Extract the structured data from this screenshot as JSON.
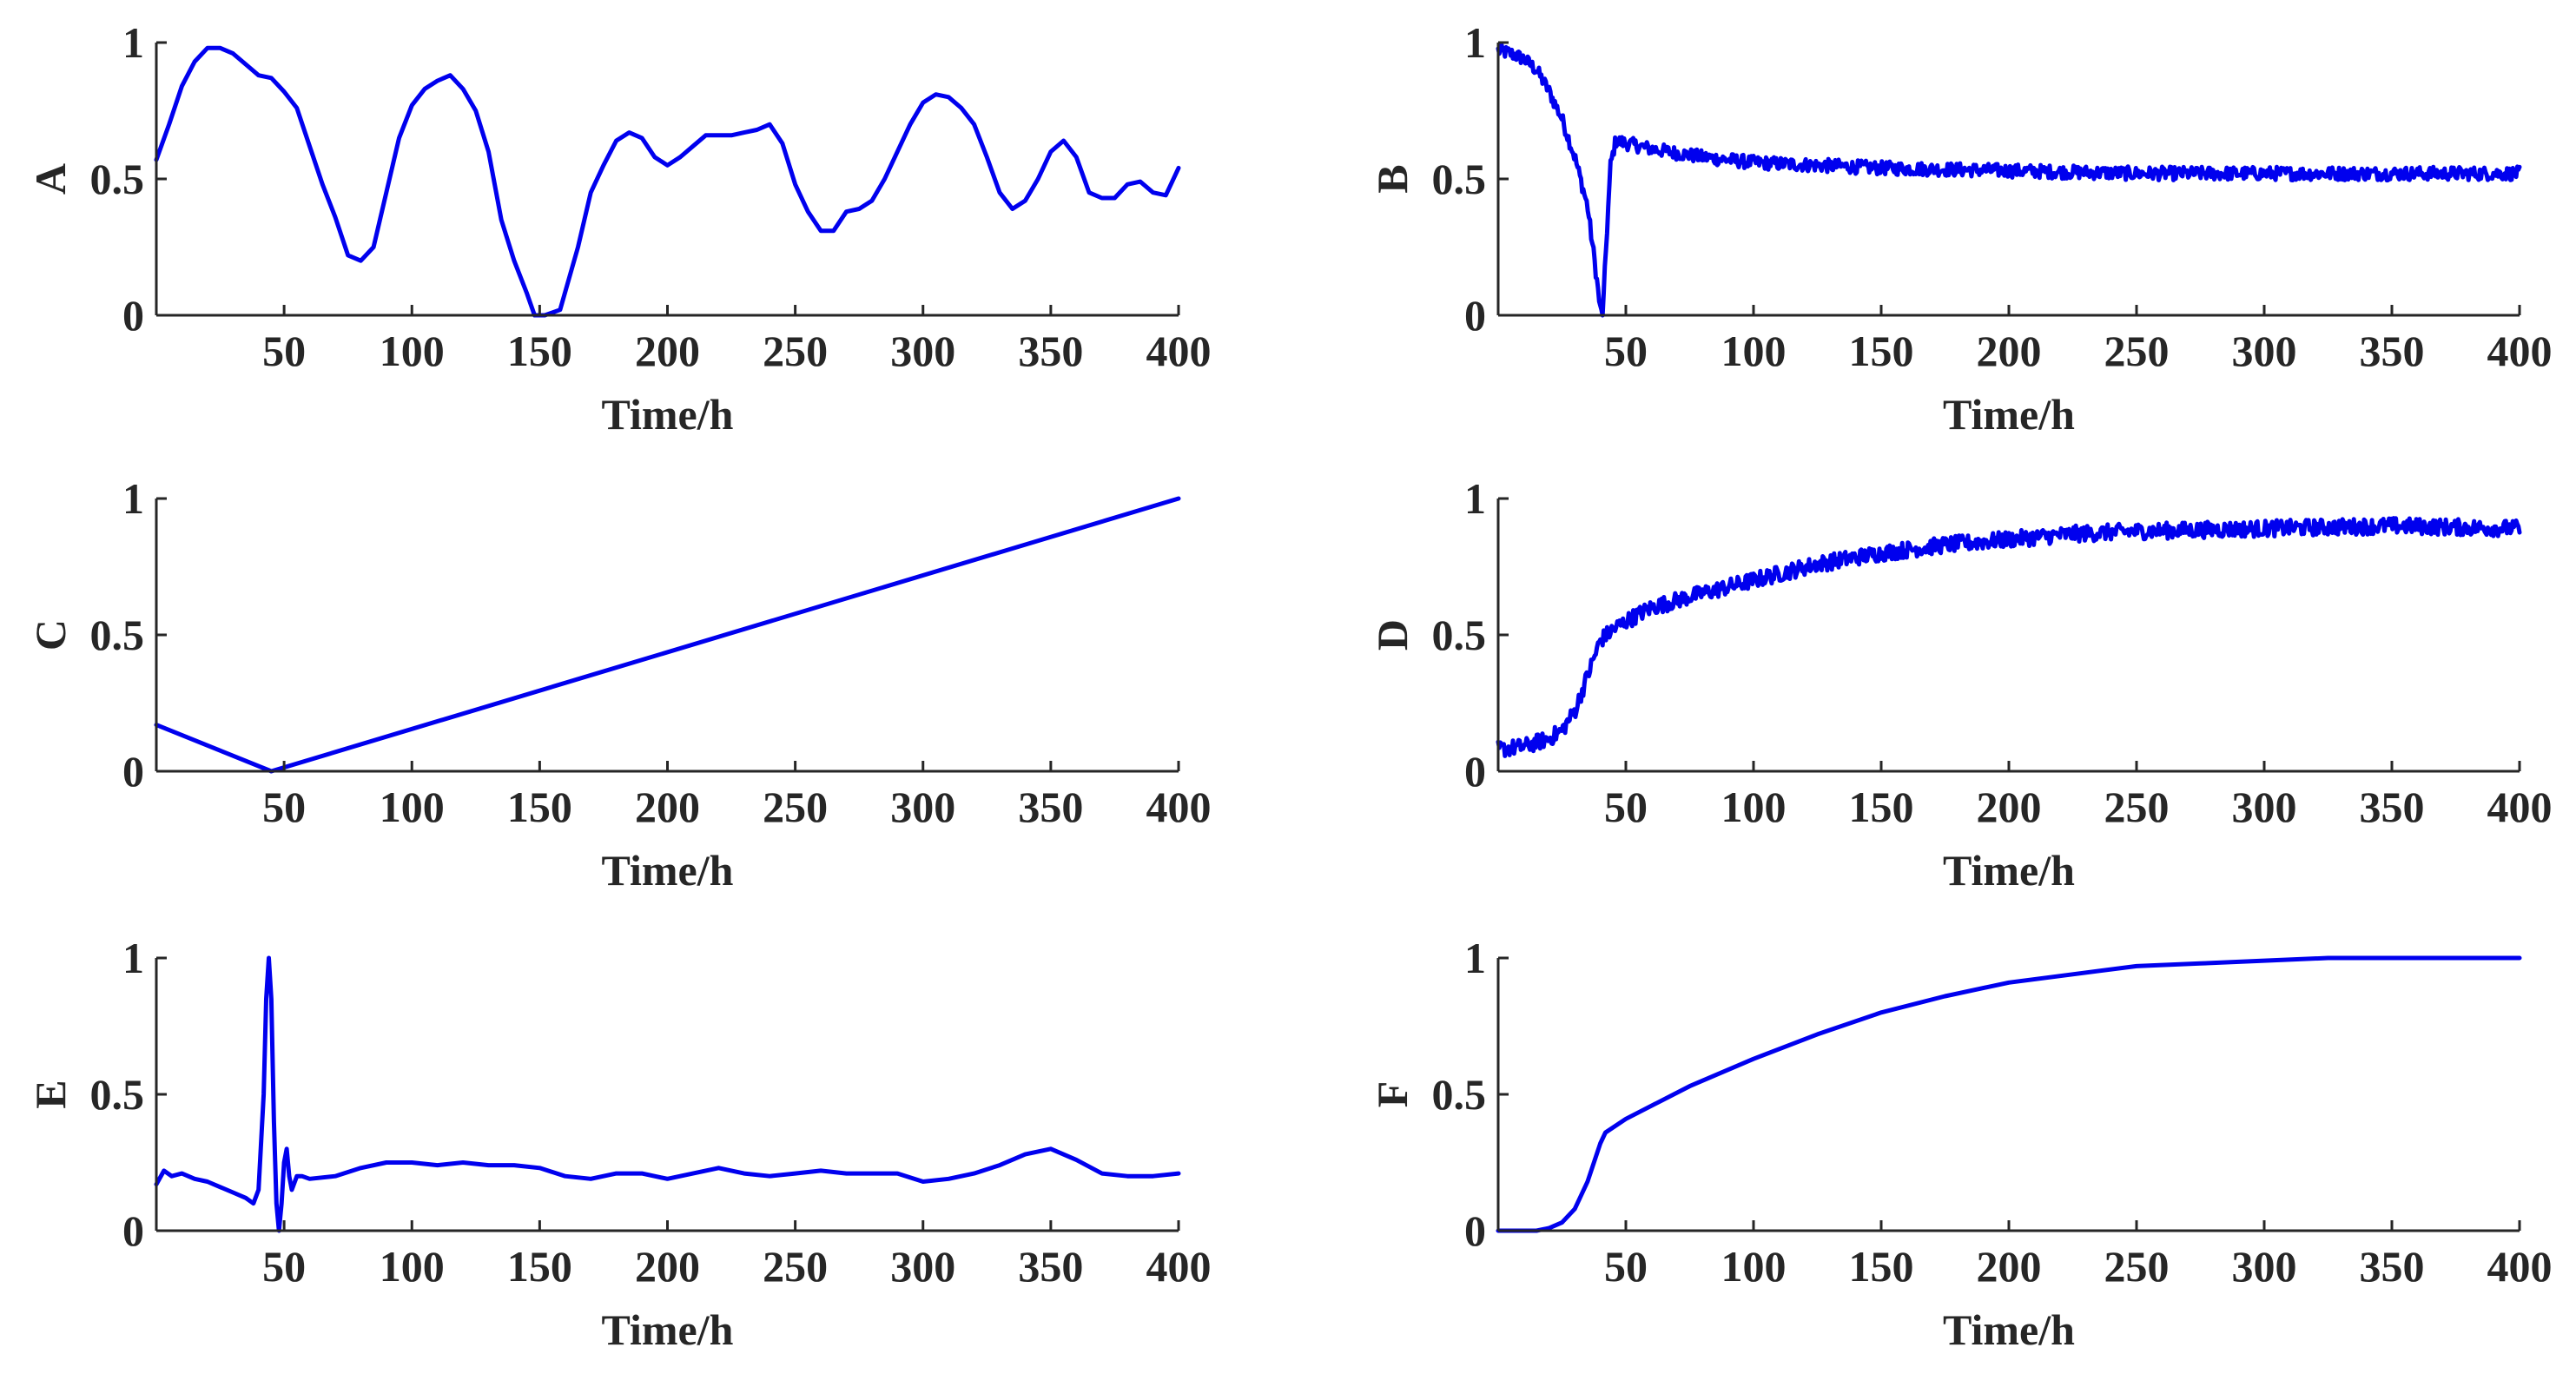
{
  "chart_data": [
    {
      "type": "line",
      "id": "A",
      "ylabel": "A",
      "xlabel": "Time/h",
      "xlim": [
        0,
        400
      ],
      "ylim": [
        0,
        1
      ],
      "xticks": [
        50,
        100,
        150,
        200,
        250,
        300,
        350,
        400
      ],
      "yticks": [
        0,
        0.5,
        1
      ],
      "ytick_labels": [
        "0",
        "0.5",
        "1"
      ],
      "noise": 0,
      "series": [
        {
          "name": "A",
          "color": "#0000ee",
          "points": [
            [
              0,
              0.57
            ],
            [
              5,
              0.7
            ],
            [
              10,
              0.84
            ],
            [
              15,
              0.93
            ],
            [
              20,
              0.98
            ],
            [
              25,
              0.98
            ],
            [
              30,
              0.96
            ],
            [
              35,
              0.92
            ],
            [
              40,
              0.88
            ],
            [
              45,
              0.87
            ],
            [
              50,
              0.82
            ],
            [
              55,
              0.76
            ],
            [
              60,
              0.62
            ],
            [
              65,
              0.48
            ],
            [
              70,
              0.36
            ],
            [
              75,
              0.22
            ],
            [
              80,
              0.2
            ],
            [
              85,
              0.25
            ],
            [
              90,
              0.45
            ],
            [
              95,
              0.65
            ],
            [
              100,
              0.77
            ],
            [
              105,
              0.83
            ],
            [
              110,
              0.86
            ],
            [
              115,
              0.88
            ],
            [
              120,
              0.83
            ],
            [
              125,
              0.75
            ],
            [
              130,
              0.6
            ],
            [
              135,
              0.35
            ],
            [
              140,
              0.2
            ],
            [
              145,
              0.08
            ],
            [
              148,
              0.0
            ],
            [
              152,
              0.0
            ],
            [
              158,
              0.02
            ],
            [
              165,
              0.25
            ],
            [
              170,
              0.45
            ],
            [
              175,
              0.55
            ],
            [
              180,
              0.64
            ],
            [
              185,
              0.67
            ],
            [
              190,
              0.65
            ],
            [
              195,
              0.58
            ],
            [
              200,
              0.55
            ],
            [
              205,
              0.58
            ],
            [
              210,
              0.62
            ],
            [
              215,
              0.66
            ],
            [
              225,
              0.66
            ],
            [
              230,
              0.67
            ],
            [
              235,
              0.68
            ],
            [
              240,
              0.7
            ],
            [
              245,
              0.63
            ],
            [
              250,
              0.48
            ],
            [
              255,
              0.38
            ],
            [
              260,
              0.31
            ],
            [
              265,
              0.31
            ],
            [
              270,
              0.38
            ],
            [
              275,
              0.39
            ],
            [
              280,
              0.42
            ],
            [
              285,
              0.5
            ],
            [
              290,
              0.6
            ],
            [
              295,
              0.7
            ],
            [
              300,
              0.78
            ],
            [
              305,
              0.81
            ],
            [
              310,
              0.8
            ],
            [
              315,
              0.76
            ],
            [
              320,
              0.7
            ],
            [
              325,
              0.58
            ],
            [
              330,
              0.45
            ],
            [
              335,
              0.39
            ],
            [
              340,
              0.42
            ],
            [
              345,
              0.5
            ],
            [
              350,
              0.6
            ],
            [
              355,
              0.64
            ],
            [
              360,
              0.58
            ],
            [
              365,
              0.45
            ],
            [
              370,
              0.43
            ],
            [
              375,
              0.43
            ],
            [
              380,
              0.48
            ],
            [
              385,
              0.49
            ],
            [
              390,
              0.45
            ],
            [
              395,
              0.44
            ],
            [
              400,
              0.54
            ]
          ]
        }
      ]
    },
    {
      "type": "line",
      "id": "B",
      "ylabel": "B",
      "xlabel": "Time/h",
      "xlim": [
        0,
        400
      ],
      "ylim": [
        0,
        1
      ],
      "xticks": [
        50,
        100,
        150,
        200,
        250,
        300,
        350,
        400
      ],
      "yticks": [
        0,
        0.5,
        1
      ],
      "ytick_labels": [
        "0",
        "0.5",
        "1"
      ],
      "noise": 0.025,
      "series": [
        {
          "name": "B",
          "color": "#0000ee",
          "points": [
            [
              0,
              0.97
            ],
            [
              5,
              0.96
            ],
            [
              10,
              0.94
            ],
            [
              15,
              0.9
            ],
            [
              20,
              0.82
            ],
            [
              25,
              0.72
            ],
            [
              30,
              0.58
            ],
            [
              35,
              0.4
            ],
            [
              38,
              0.18
            ],
            [
              40,
              0.02
            ],
            [
              41,
              0.0
            ],
            [
              42,
              0.2
            ],
            [
              44,
              0.55
            ],
            [
              46,
              0.64
            ],
            [
              60,
              0.61
            ],
            [
              80,
              0.58
            ],
            [
              100,
              0.56
            ],
            [
              125,
              0.55
            ],
            [
              150,
              0.54
            ],
            [
              200,
              0.53
            ],
            [
              250,
              0.52
            ],
            [
              300,
              0.52
            ],
            [
              350,
              0.52
            ],
            [
              400,
              0.52
            ]
          ]
        }
      ]
    },
    {
      "type": "line",
      "id": "C",
      "ylabel": "C",
      "xlabel": "Time/h",
      "xlim": [
        0,
        400
      ],
      "ylim": [
        0,
        1
      ],
      "xticks": [
        50,
        100,
        150,
        200,
        250,
        300,
        350,
        400
      ],
      "yticks": [
        0,
        0.5,
        1
      ],
      "ytick_labels": [
        "0",
        "0.5",
        "1"
      ],
      "noise": 0,
      "series": [
        {
          "name": "C",
          "color": "#0000ee",
          "points": [
            [
              0,
              0.17
            ],
            [
              45,
              0.0
            ],
            [
              400,
              1.0
            ]
          ]
        }
      ]
    },
    {
      "type": "line",
      "id": "D",
      "ylabel": "D",
      "xlabel": "Time/h",
      "xlim": [
        0,
        400
      ],
      "ylim": [
        0,
        1
      ],
      "xticks": [
        50,
        100,
        150,
        200,
        250,
        300,
        350,
        400
      ],
      "yticks": [
        0,
        0.5,
        1
      ],
      "ytick_labels": [
        "0",
        "0.5",
        "1"
      ],
      "noise": 0.03,
      "series": [
        {
          "name": "D",
          "color": "#0000ee",
          "points": [
            [
              0,
              0.08
            ],
            [
              10,
              0.09
            ],
            [
              20,
              0.12
            ],
            [
              25,
              0.15
            ],
            [
              30,
              0.22
            ],
            [
              35,
              0.35
            ],
            [
              40,
              0.48
            ],
            [
              45,
              0.52
            ],
            [
              50,
              0.55
            ],
            [
              60,
              0.6
            ],
            [
              75,
              0.64
            ],
            [
              100,
              0.7
            ],
            [
              125,
              0.76
            ],
            [
              150,
              0.8
            ],
            [
              175,
              0.83
            ],
            [
              200,
              0.85
            ],
            [
              225,
              0.87
            ],
            [
              250,
              0.88
            ],
            [
              300,
              0.89
            ],
            [
              350,
              0.9
            ],
            [
              400,
              0.89
            ]
          ]
        }
      ]
    },
    {
      "type": "line",
      "id": "E",
      "ylabel": "E",
      "xlabel": "Time/h",
      "xlim": [
        0,
        400
      ],
      "ylim": [
        0,
        1
      ],
      "xticks": [
        50,
        100,
        150,
        200,
        250,
        300,
        350,
        400
      ],
      "yticks": [
        0,
        0.5,
        1
      ],
      "ytick_labels": [
        "0",
        "0.5",
        "1"
      ],
      "noise": 0,
      "series": [
        {
          "name": "E",
          "color": "#0000ee",
          "points": [
            [
              0,
              0.17
            ],
            [
              3,
              0.22
            ],
            [
              6,
              0.2
            ],
            [
              10,
              0.21
            ],
            [
              15,
              0.19
            ],
            [
              20,
              0.18
            ],
            [
              25,
              0.16
            ],
            [
              30,
              0.14
            ],
            [
              35,
              0.12
            ],
            [
              38,
              0.1
            ],
            [
              40,
              0.15
            ],
            [
              42,
              0.5
            ],
            [
              43,
              0.85
            ],
            [
              44,
              1.0
            ],
            [
              45,
              0.85
            ],
            [
              46,
              0.4
            ],
            [
              47,
              0.1
            ],
            [
              48,
              0.0
            ],
            [
              49,
              0.1
            ],
            [
              50,
              0.25
            ],
            [
              51,
              0.3
            ],
            [
              52,
              0.2
            ],
            [
              53,
              0.15
            ],
            [
              55,
              0.2
            ],
            [
              57,
              0.2
            ],
            [
              60,
              0.19
            ],
            [
              70,
              0.2
            ],
            [
              80,
              0.23
            ],
            [
              90,
              0.25
            ],
            [
              100,
              0.25
            ],
            [
              110,
              0.24
            ],
            [
              120,
              0.25
            ],
            [
              130,
              0.24
            ],
            [
              140,
              0.24
            ],
            [
              150,
              0.23
            ],
            [
              160,
              0.2
            ],
            [
              170,
              0.19
            ],
            [
              180,
              0.21
            ],
            [
              190,
              0.21
            ],
            [
              200,
              0.19
            ],
            [
              210,
              0.21
            ],
            [
              220,
              0.23
            ],
            [
              230,
              0.21
            ],
            [
              240,
              0.2
            ],
            [
              250,
              0.21
            ],
            [
              260,
              0.22
            ],
            [
              270,
              0.21
            ],
            [
              280,
              0.21
            ],
            [
              290,
              0.21
            ],
            [
              300,
              0.18
            ],
            [
              310,
              0.19
            ],
            [
              320,
              0.21
            ],
            [
              330,
              0.24
            ],
            [
              340,
              0.28
            ],
            [
              350,
              0.3
            ],
            [
              360,
              0.26
            ],
            [
              370,
              0.21
            ],
            [
              380,
              0.2
            ],
            [
              390,
              0.2
            ],
            [
              400,
              0.21
            ]
          ]
        }
      ]
    },
    {
      "type": "line",
      "id": "F",
      "ylabel": "F",
      "xlabel": "Time/h",
      "xlim": [
        0,
        400
      ],
      "ylim": [
        0,
        1
      ],
      "xticks": [
        50,
        100,
        150,
        200,
        250,
        300,
        350,
        400
      ],
      "yticks": [
        0,
        0.5,
        1
      ],
      "ytick_labels": [
        "0",
        "0.5",
        "1"
      ],
      "noise": 0,
      "series": [
        {
          "name": "F",
          "color": "#0000ee",
          "points": [
            [
              0,
              0.0
            ],
            [
              10,
              0.0
            ],
            [
              15,
              0.0
            ],
            [
              20,
              0.01
            ],
            [
              25,
              0.03
            ],
            [
              30,
              0.08
            ],
            [
              35,
              0.18
            ],
            [
              40,
              0.32
            ],
            [
              42,
              0.36
            ],
            [
              50,
              0.41
            ],
            [
              75,
              0.53
            ],
            [
              100,
              0.63
            ],
            [
              125,
              0.72
            ],
            [
              150,
              0.8
            ],
            [
              175,
              0.86
            ],
            [
              200,
              0.91
            ],
            [
              225,
              0.94
            ],
            [
              250,
              0.97
            ],
            [
              275,
              0.98
            ],
            [
              300,
              0.99
            ],
            [
              325,
              1.0
            ],
            [
              350,
              1.0
            ],
            [
              400,
              1.0
            ]
          ]
        }
      ]
    }
  ]
}
